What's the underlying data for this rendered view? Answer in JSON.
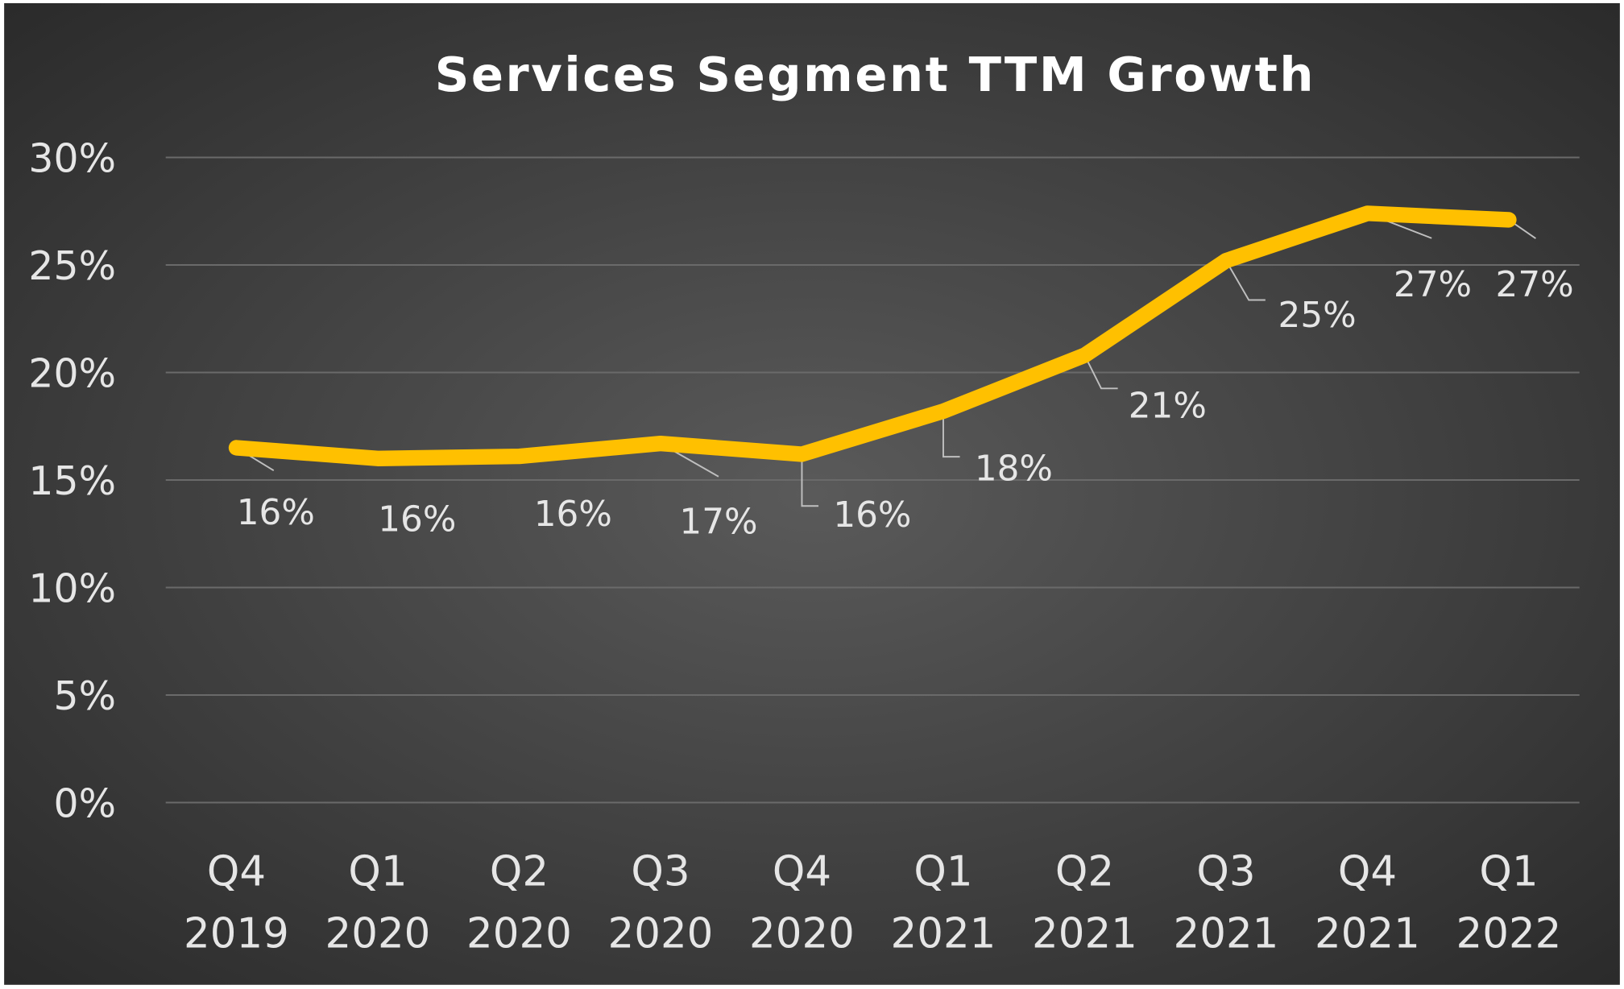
{
  "chart_data": {
    "type": "line",
    "title": "Services Segment TTM Growth",
    "categories": [
      [
        "Q4",
        "2019"
      ],
      [
        "Q1",
        "2020"
      ],
      [
        "Q2",
        "2020"
      ],
      [
        "Q3",
        "2020"
      ],
      [
        "Q4",
        "2020"
      ],
      [
        "Q1",
        "2021"
      ],
      [
        "Q2",
        "2021"
      ],
      [
        "Q3",
        "2021"
      ],
      [
        "Q4",
        "2021"
      ],
      [
        "Q1",
        "2022"
      ]
    ],
    "series": [
      {
        "values": [
          16.5,
          16.0,
          16.1,
          16.7,
          16.2,
          18.2,
          20.8,
          25.2,
          27.4,
          27.1
        ],
        "data_labels": [
          "16%",
          "16%",
          "16%",
          "17%",
          "16%",
          "18%",
          "21%",
          "25%",
          "27%",
          "27%"
        ],
        "color": "#FFC000"
      }
    ],
    "ylim": [
      0,
      30
    ],
    "yticks": [
      0,
      5,
      10,
      15,
      20,
      25,
      30
    ],
    "ytick_labels": [
      "0%",
      "5%",
      "10%",
      "15%",
      "20%",
      "25%",
      "30%"
    ],
    "xlabel": "",
    "ylabel": "",
    "grid": true,
    "legend": "none",
    "colors": {
      "background_center": "#5a5a5a",
      "background_edge": "#2b2b2b",
      "grid": "#6a6a6a",
      "text": "#e6e6e6",
      "title": "#ffffff"
    }
  }
}
